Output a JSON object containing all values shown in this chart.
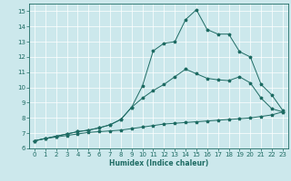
{
  "xlabel": "Humidex (Indice chaleur)",
  "xlim": [
    -0.5,
    23.5
  ],
  "ylim": [
    6,
    15.5
  ],
  "xticks": [
    0,
    1,
    2,
    3,
    4,
    5,
    6,
    7,
    8,
    9,
    10,
    11,
    12,
    13,
    14,
    15,
    16,
    17,
    18,
    19,
    20,
    21,
    22,
    23
  ],
  "yticks": [
    6,
    7,
    8,
    9,
    10,
    11,
    12,
    13,
    14,
    15
  ],
  "bg_color": "#cce8ec",
  "line_color": "#1e6b63",
  "line1_x": [
    0,
    1,
    2,
    3,
    4,
    5,
    6,
    7,
    8,
    9,
    10,
    11,
    12,
    13,
    14,
    15,
    16,
    17,
    18,
    19,
    20,
    21,
    22,
    23
  ],
  "line1_y": [
    6.5,
    6.65,
    6.75,
    6.85,
    6.95,
    7.05,
    7.1,
    7.15,
    7.2,
    7.3,
    7.4,
    7.5,
    7.6,
    7.65,
    7.7,
    7.75,
    7.8,
    7.85,
    7.9,
    7.95,
    8.0,
    8.1,
    8.2,
    8.4
  ],
  "line2_x": [
    0,
    1,
    2,
    3,
    4,
    5,
    6,
    7,
    8,
    9,
    10,
    11,
    12,
    13,
    14,
    15,
    16,
    17,
    18,
    19,
    20,
    21,
    22,
    23
  ],
  "line2_y": [
    6.5,
    6.65,
    6.8,
    6.95,
    7.1,
    7.2,
    7.35,
    7.55,
    7.9,
    8.7,
    9.3,
    9.8,
    10.2,
    10.7,
    11.2,
    10.9,
    10.6,
    10.5,
    10.45,
    10.7,
    10.3,
    9.3,
    8.6,
    8.4
  ],
  "line3_x": [
    0,
    1,
    2,
    3,
    4,
    5,
    6,
    7,
    8,
    9,
    10,
    11,
    12,
    13,
    14,
    15,
    16,
    17,
    18,
    19,
    20,
    21,
    22,
    23
  ],
  "line3_y": [
    6.5,
    6.65,
    6.8,
    6.95,
    7.1,
    7.2,
    7.35,
    7.55,
    7.9,
    8.7,
    10.1,
    12.4,
    12.9,
    13.0,
    14.45,
    15.1,
    13.8,
    13.5,
    13.5,
    12.35,
    12.0,
    10.2,
    9.5,
    8.5
  ],
  "marker": "*",
  "markersize": 2.5,
  "linewidth": 0.7
}
